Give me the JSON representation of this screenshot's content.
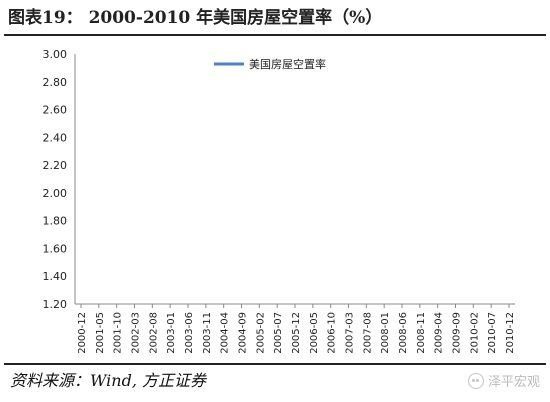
{
  "figure": {
    "title": "图表19：  2000-2010 年美国房屋空置率（%）",
    "source": "资料来源：Wind, 方正证券",
    "watermark": "泽平宏观",
    "watermark_icon": "wechat-icon"
  },
  "chart_data": {
    "type": "line",
    "series": [
      {
        "name": "美国房屋空置率",
        "color": "#4f81bd"
      }
    ],
    "x_tick_labels": [
      "2000-12",
      "2001-05",
      "2001-10",
      "2002-03",
      "2002-08",
      "2003-01",
      "2003-06",
      "2003-11",
      "2004-04",
      "2004-09",
      "2005-02",
      "2005-07",
      "2005-12",
      "2006-05",
      "2006-10",
      "2007-03",
      "2007-08",
      "2008-01",
      "2008-06",
      "2008-11",
      "2009-04",
      "2009-09",
      "2010-02",
      "2010-07",
      "2010-12"
    ],
    "y_tick_labels": [
      "1.20",
      "1.40",
      "1.60",
      "1.80",
      "2.00",
      "2.20",
      "2.40",
      "2.60",
      "2.80",
      "3.00"
    ],
    "ylim": [
      1.2,
      3.0
    ],
    "legend_position": "top-center",
    "grid": false
  }
}
